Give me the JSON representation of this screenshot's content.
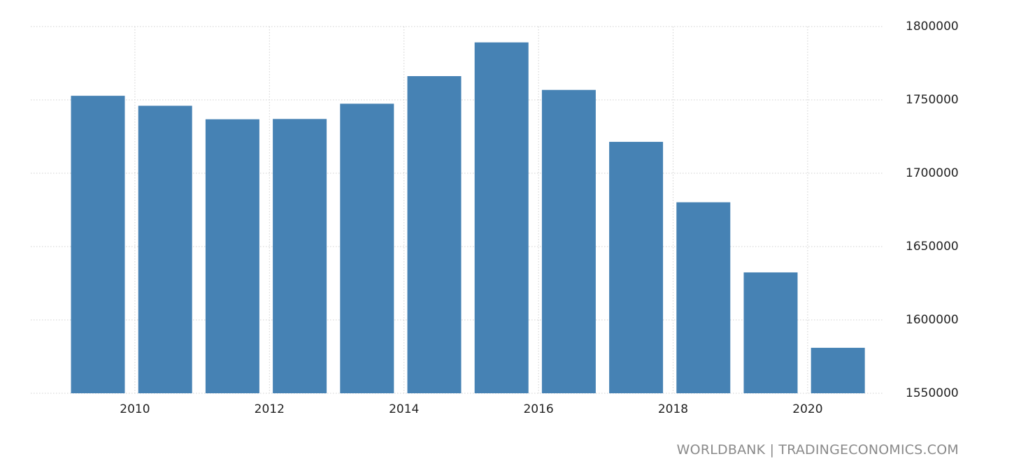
{
  "chart_data": {
    "type": "bar",
    "categories": [
      "2009",
      "2010",
      "2011",
      "2012",
      "2013",
      "2014",
      "2015",
      "2016",
      "2017",
      "2018",
      "2019",
      "2020"
    ],
    "series": [
      {
        "values": [
          1752800,
          1746000,
          1736800,
          1737000,
          1747400,
          1766200,
          1789200,
          1756800,
          1721400,
          1680200,
          1632400,
          1581000
        ]
      }
    ],
    "x_tick_labels": [
      "2010",
      "2012",
      "2014",
      "2016",
      "2018",
      "2020"
    ],
    "y_tick_labels": [
      "1550000",
      "1600000",
      "1650000",
      "1700000",
      "1750000",
      "1800000"
    ],
    "ylim": [
      1550000,
      1800000
    ],
    "y_axis_position": "right",
    "grid": true,
    "bar_color": "#4682b4",
    "grid_color": "#d0d0d0"
  },
  "source_label": "WORLDBANK | TRADINGECONOMICS.COM"
}
